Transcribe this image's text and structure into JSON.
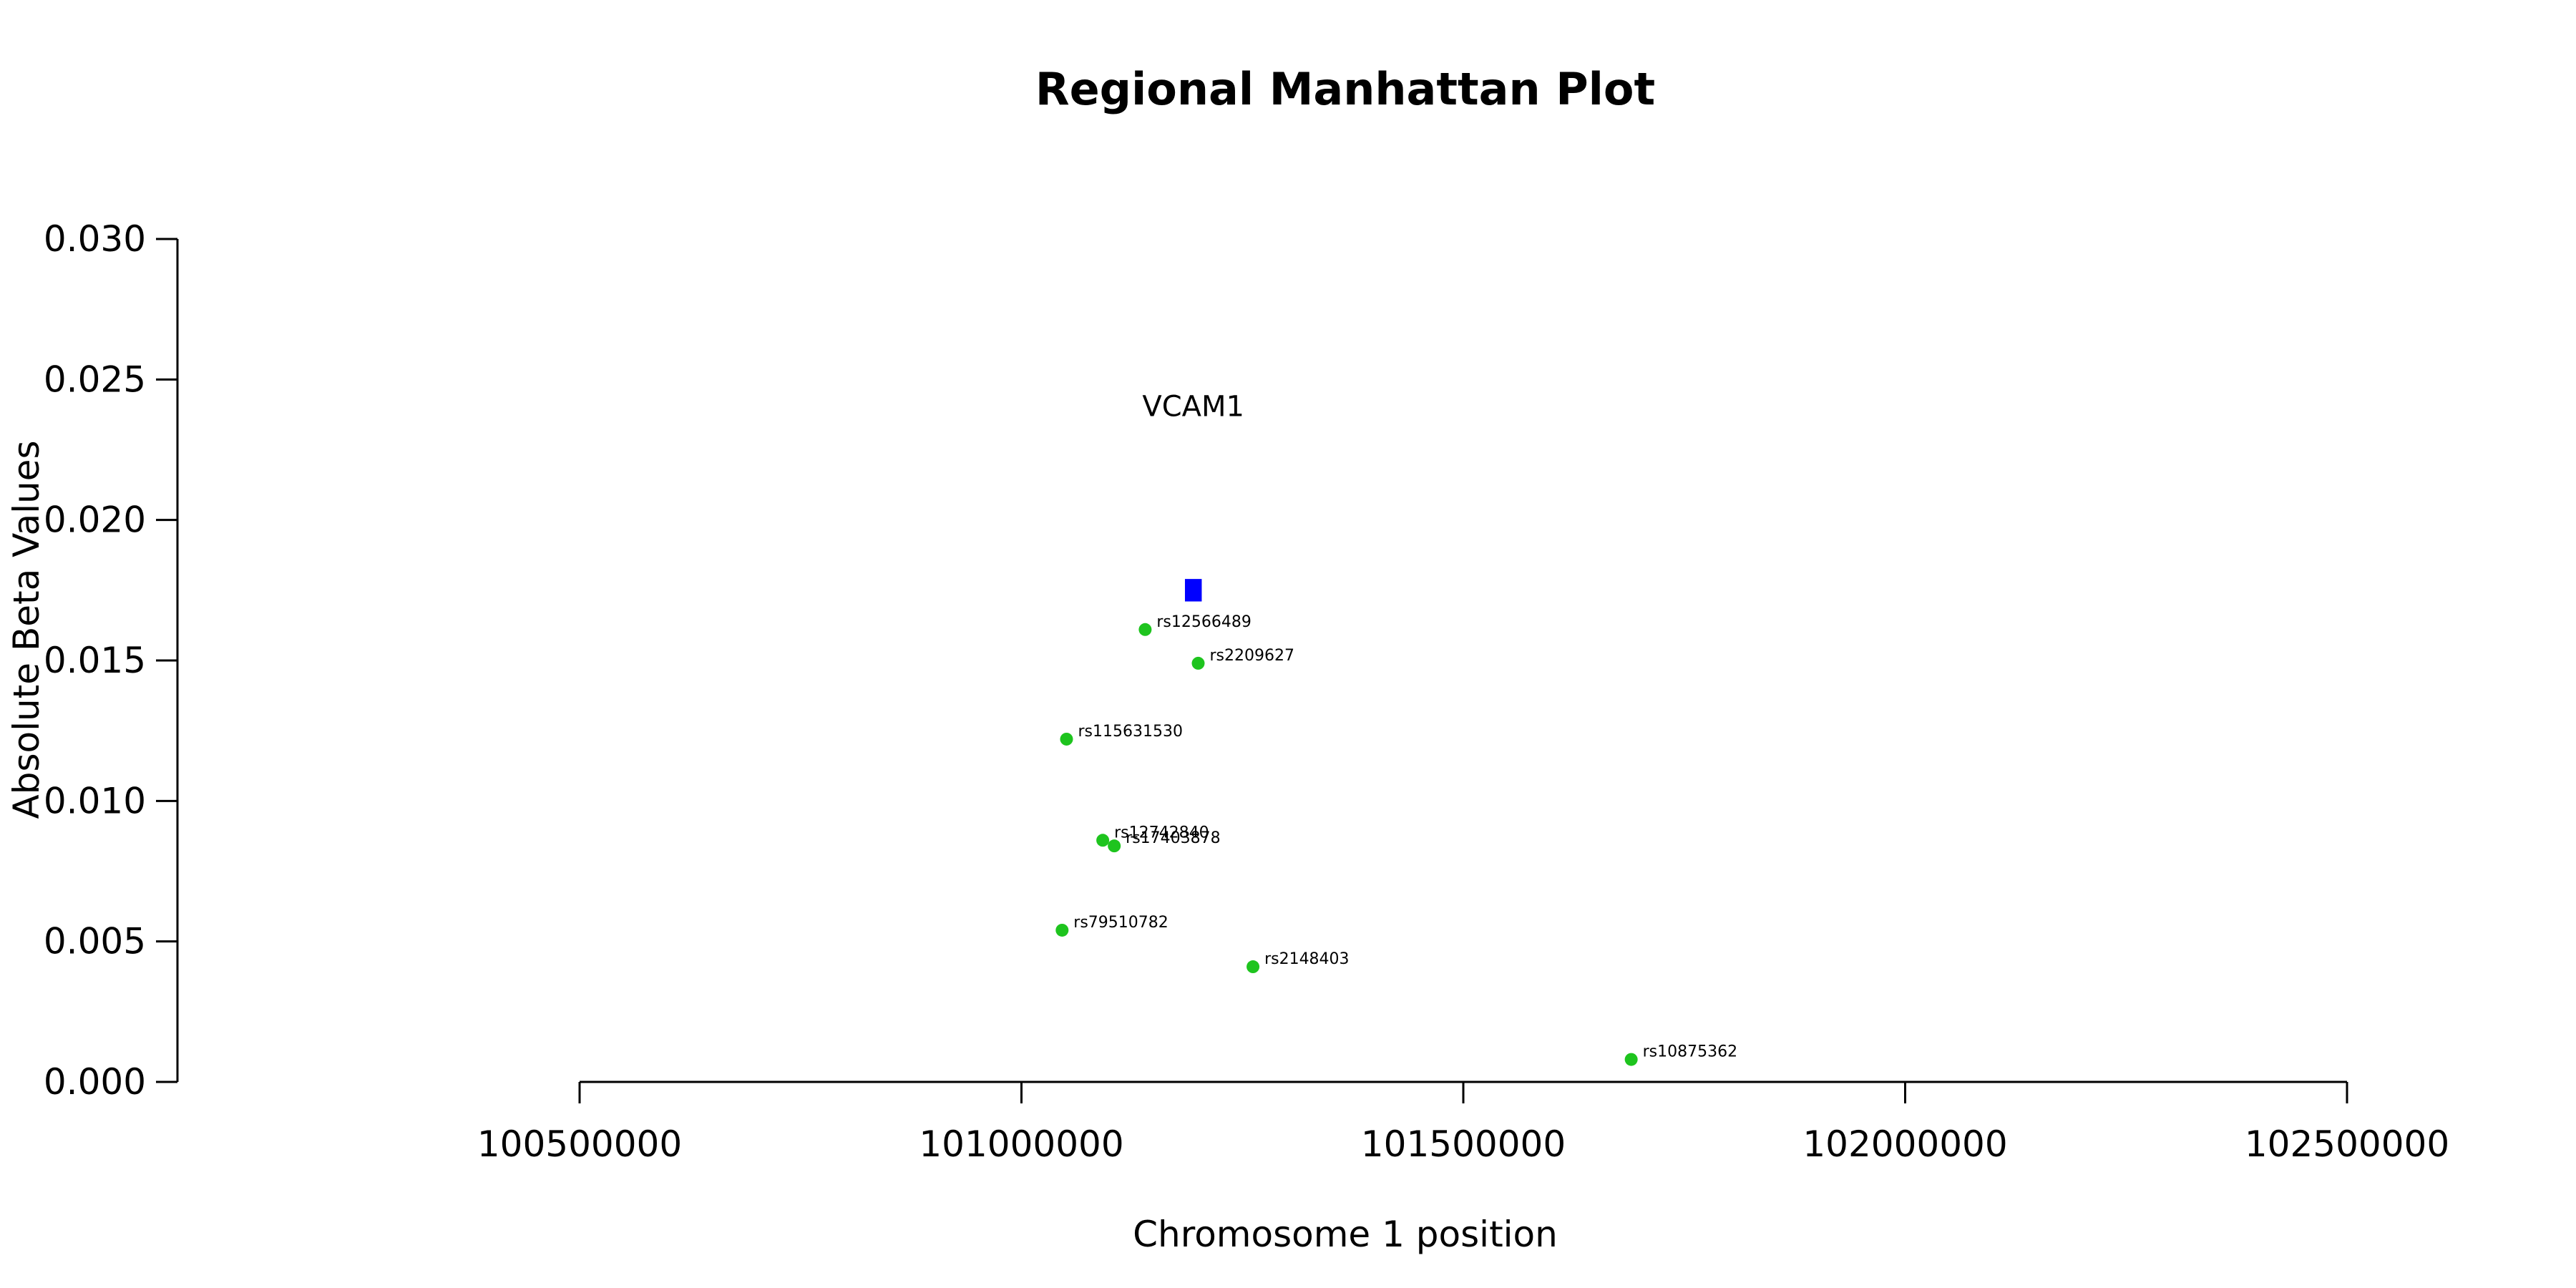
{
  "chart_data": {
    "type": "scatter",
    "title": "Regional Manhattan Plot",
    "xlabel": "Chromosome 1 position",
    "ylabel": "Absolute Beta Values",
    "xlim": [
      100500000,
      102500000
    ],
    "ylim": [
      0.0,
      0.03
    ],
    "x_ticks": [
      "100500000",
      "101000000",
      "101500000",
      "102000000",
      "102500000"
    ],
    "y_ticks": [
      "0.000",
      "0.005",
      "0.010",
      "0.015",
      "0.020",
      "0.025",
      "0.030"
    ],
    "grid": false,
    "points": [
      {
        "label": "rs12566489",
        "x": 101140000,
        "y": 0.0161
      },
      {
        "label": "rs2209627",
        "x": 101200000,
        "y": 0.0149
      },
      {
        "label": "rs115631530",
        "x": 101051000,
        "y": 0.0122
      },
      {
        "label": "rs12742840",
        "x": 101092000,
        "y": 0.0086
      },
      {
        "label": "rs17403878",
        "x": 101105000,
        "y": 0.0084
      },
      {
        "label": "rs79510782",
        "x": 101046000,
        "y": 0.0054
      },
      {
        "label": "rs2148403",
        "x": 101262000,
        "y": 0.0041
      },
      {
        "label": "rs10875362",
        "x": 101690000,
        "y": 0.0008
      }
    ],
    "gene": {
      "name": "VCAM1",
      "x_start": 101185000,
      "x_end": 101204000,
      "y_low": 0.0171,
      "y_high": 0.0179
    },
    "colors": {
      "points": "#1ec41e",
      "gene": "#0000ff",
      "axis": "#000000"
    }
  }
}
